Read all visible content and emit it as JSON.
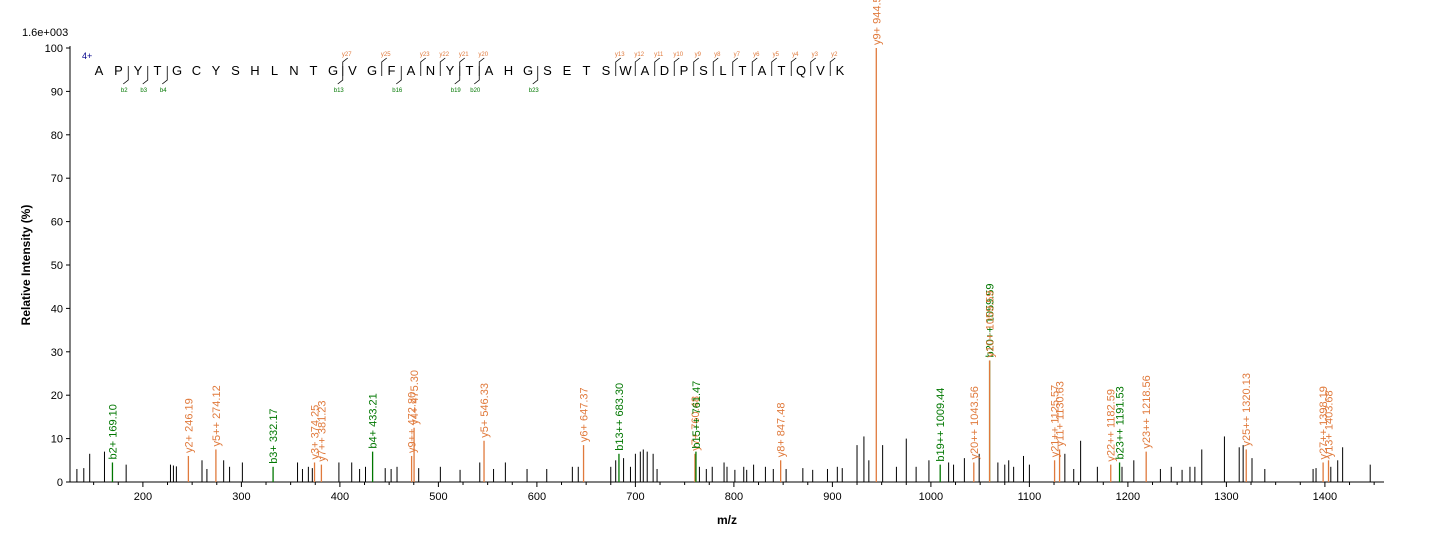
{
  "chart_data": {
    "type": "spectrum",
    "scale_label": "1.6e+003",
    "xlabel": "m/z",
    "ylabel": "Relative  Intensity (%)",
    "xlim": [
      126,
      1460
    ],
    "ylim": [
      0,
      100
    ],
    "x_ticks": [
      100,
      200,
      300,
      400,
      500,
      600,
      700,
      800,
      900,
      1000,
      1100,
      1200,
      1300,
      1400
    ],
    "y_ticks": [
      0,
      10,
      20,
      30,
      40,
      50,
      60,
      70,
      80,
      90,
      100
    ],
    "colors": {
      "b_ion": "#007700",
      "y_ion": "#e07a3c",
      "other": "#000000",
      "charge": "#00008b"
    },
    "peptide": {
      "charge": "4+",
      "sequence": "APYTGCYSHLNTGVGFANYTAHGSETSWADPSLTATQVK",
      "b_markers": [
        {
          "after": 2,
          "label": "b2"
        },
        {
          "after": 3,
          "label": "b3"
        },
        {
          "after": 4,
          "label": "b4"
        },
        {
          "after": 13,
          "label": "b13"
        },
        {
          "after": 16,
          "label": "b16"
        },
        {
          "after": 19,
          "label": "b19"
        },
        {
          "after": 20,
          "label": "b20"
        },
        {
          "after": 23,
          "label": "b23"
        }
      ],
      "y_markers": [
        {
          "before": 13,
          "label": "y27"
        },
        {
          "before": 15,
          "label": "y25"
        },
        {
          "before": 17,
          "label": "y23"
        },
        {
          "before": 18,
          "label": "y22"
        },
        {
          "before": 19,
          "label": "y21"
        },
        {
          "before": 20,
          "label": "y20"
        },
        {
          "before": 27,
          "label": "y13"
        },
        {
          "before": 28,
          "label": "y12"
        },
        {
          "before": 29,
          "label": "y11"
        },
        {
          "before": 30,
          "label": "y10"
        },
        {
          "before": 31,
          "label": "y9"
        },
        {
          "before": 32,
          "label": "y8"
        },
        {
          "before": 33,
          "label": "y7"
        },
        {
          "before": 34,
          "label": "y6"
        },
        {
          "before": 35,
          "label": "y5"
        },
        {
          "before": 36,
          "label": "y4"
        },
        {
          "before": 37,
          "label": "y3"
        },
        {
          "before": 38,
          "label": "y2"
        }
      ]
    },
    "labeled_peaks": [
      {
        "mz": 169.1,
        "intensity": 4.5,
        "type": "b",
        "label": "b2+ 169.10"
      },
      {
        "mz": 246.19,
        "intensity": 6.0,
        "type": "y",
        "label": "y2+ 246.19"
      },
      {
        "mz": 274.12,
        "intensity": 7.5,
        "type": "y",
        "label": "y5++ 274.12"
      },
      {
        "mz": 332.17,
        "intensity": 3.5,
        "type": "b",
        "label": "b3+ 332.17"
      },
      {
        "mz": 374.25,
        "intensity": 4.5,
        "type": "y",
        "label": "y3+ 374.25"
      },
      {
        "mz": 381.23,
        "intensity": 4.0,
        "type": "y",
        "label": "y7++ 381.23"
      },
      {
        "mz": 433.21,
        "intensity": 7.0,
        "type": "b",
        "label": "b4+ 433.21"
      },
      {
        "mz": 472.8,
        "intensity": 6.0,
        "type": "y",
        "label": "y9++ 472.80"
      },
      {
        "mz": 475.3,
        "intensity": 12.5,
        "type": "y",
        "label": "y4+ 475.30"
      },
      {
        "mz": 546.33,
        "intensity": 9.5,
        "type": "y",
        "label": "y5+ 546.33"
      },
      {
        "mz": 647.37,
        "intensity": 8.5,
        "type": "y",
        "label": "y6+ 647.37"
      },
      {
        "mz": 683.3,
        "intensity": 6.5,
        "type": "b",
        "label": "b13++ 683.30"
      },
      {
        "mz": 760.48,
        "intensity": 6.5,
        "type": "y",
        "label": "y7+ 760.48"
      },
      {
        "mz": 761.47,
        "intensity": 7.0,
        "type": "b",
        "label": "b15++ 761.47"
      },
      {
        "mz": 847.48,
        "intensity": 5.0,
        "type": "y",
        "label": "y8+ 847.48"
      },
      {
        "mz": 944.56,
        "intensity": 100.0,
        "type": "y",
        "label": "y9+ 944.56"
      },
      {
        "mz": 1009.44,
        "intensity": 4.0,
        "type": "b",
        "label": "b19++ 1009.44"
      },
      {
        "mz": 1043.56,
        "intensity": 4.5,
        "type": "y",
        "label": "y20++ 1043.56"
      },
      {
        "mz": 1059.59,
        "intensity": 28.0,
        "type": "b",
        "label": "b20++ 1059.59"
      },
      {
        "mz": 1059.6,
        "intensity": 28.0,
        "type": "y",
        "label": "y10+ 1059.59"
      },
      {
        "mz": 1125.57,
        "intensity": 5.0,
        "type": "y",
        "label": "y21++ 1125.57"
      },
      {
        "mz": 1130.63,
        "intensity": 7.5,
        "type": "y",
        "label": "y11+ 1130.63"
      },
      {
        "mz": 1182.59,
        "intensity": 4.0,
        "type": "y",
        "label": "y22++ 1182.59"
      },
      {
        "mz": 1191.53,
        "intensity": 4.5,
        "type": "b",
        "label": "b23++ 1191.53"
      },
      {
        "mz": 1218.56,
        "intensity": 7.0,
        "type": "y",
        "label": "y23++ 1218.56"
      },
      {
        "mz": 1320.13,
        "intensity": 7.5,
        "type": "y",
        "label": "y25++ 1320.13"
      },
      {
        "mz": 1398.19,
        "intensity": 4.5,
        "type": "y",
        "label": "y27++ 1398.19"
      },
      {
        "mz": 1403.68,
        "intensity": 5.0,
        "type": "y",
        "label": "y13+ 1403.68"
      }
    ],
    "unlabeled_peaks": [
      [
        133,
        3
      ],
      [
        140,
        3.2
      ],
      [
        146,
        6.5
      ],
      [
        161,
        7
      ],
      [
        183,
        4
      ],
      [
        228,
        4
      ],
      [
        231,
        3.8
      ],
      [
        234,
        3.6
      ],
      [
        260,
        5
      ],
      [
        265,
        3
      ],
      [
        282,
        5
      ],
      [
        288,
        3.5
      ],
      [
        301,
        4.5
      ],
      [
        357,
        4.5
      ],
      [
        362,
        3
      ],
      [
        368,
        3.5
      ],
      [
        372,
        3.2
      ],
      [
        399,
        4.5
      ],
      [
        412,
        4.5
      ],
      [
        420,
        3
      ],
      [
        426,
        3.5
      ],
      [
        446,
        3.2
      ],
      [
        452,
        3
      ],
      [
        458,
        3.5
      ],
      [
        480,
        3.2
      ],
      [
        502,
        3.5
      ],
      [
        522,
        2.8
      ],
      [
        542,
        4.5
      ],
      [
        556,
        3
      ],
      [
        568,
        4.5
      ],
      [
        590,
        3
      ],
      [
        610,
        3
      ],
      [
        636,
        3.5
      ],
      [
        642,
        3.5
      ],
      [
        675,
        3.5
      ],
      [
        680,
        5
      ],
      [
        688,
        5.5
      ],
      [
        695,
        3.5
      ],
      [
        700,
        6.5
      ],
      [
        705,
        7
      ],
      [
        708,
        7.5
      ],
      [
        712,
        7
      ],
      [
        718,
        6.5
      ],
      [
        722,
        3
      ],
      [
        765,
        3.5
      ],
      [
        772,
        3
      ],
      [
        778,
        3.5
      ],
      [
        790,
        4.5
      ],
      [
        793,
        3.5
      ],
      [
        801,
        2.8
      ],
      [
        810,
        3.5
      ],
      [
        813,
        2.8
      ],
      [
        820,
        4
      ],
      [
        832,
        3.5
      ],
      [
        840,
        3
      ],
      [
        853,
        3
      ],
      [
        870,
        3.2
      ],
      [
        880,
        2.8
      ],
      [
        895,
        3
      ],
      [
        905,
        3.5
      ],
      [
        910,
        3.2
      ],
      [
        925,
        8.5
      ],
      [
        932,
        10.5
      ],
      [
        937,
        5
      ],
      [
        951,
        8.5
      ],
      [
        965,
        3.5
      ],
      [
        975,
        10
      ],
      [
        985,
        3.5
      ],
      [
        998,
        5
      ],
      [
        1018,
        4.5
      ],
      [
        1023,
        4
      ],
      [
        1034,
        5.5
      ],
      [
        1049,
        6.5
      ],
      [
        1068,
        4.5
      ],
      [
        1075,
        4
      ],
      [
        1079,
        5
      ],
      [
        1084,
        3.5
      ],
      [
        1094,
        6
      ],
      [
        1100,
        4
      ],
      [
        1136,
        6.5
      ],
      [
        1145,
        3
      ],
      [
        1152,
        9.5
      ],
      [
        1169,
        3.5
      ],
      [
        1194,
        3.5
      ],
      [
        1206,
        5
      ],
      [
        1233,
        3
      ],
      [
        1244,
        3.5
      ],
      [
        1255,
        2.8
      ],
      [
        1263,
        3.5
      ],
      [
        1268,
        3.5
      ],
      [
        1275,
        7.5
      ],
      [
        1298,
        10.5
      ],
      [
        1313,
        8
      ],
      [
        1317,
        8.5
      ],
      [
        1326,
        5.5
      ],
      [
        1339,
        3
      ],
      [
        1388,
        3
      ],
      [
        1391,
        3.2
      ],
      [
        1406,
        3.5
      ],
      [
        1413,
        5
      ],
      [
        1418,
        8
      ],
      [
        1446,
        4
      ]
    ]
  }
}
